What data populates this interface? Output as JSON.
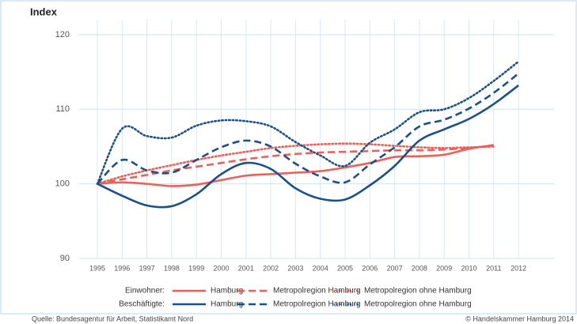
{
  "chart_data": {
    "type": "line",
    "y_label": "Index",
    "categories": [
      "1995",
      "1996",
      "1997",
      "1998",
      "1999",
      "2000",
      "2001",
      "2002",
      "2003",
      "2004",
      "2005",
      "2006",
      "2007",
      "2008",
      "2009",
      "2010",
      "2011",
      "2012"
    ],
    "ylim": [
      90,
      122
    ],
    "yticks": [
      90,
      100,
      110,
      120
    ],
    "grid": true,
    "groups": [
      {
        "name": "Einwohner:",
        "series": [
          {
            "name": "Hamburg",
            "color": "#ef5f57",
            "dash": "solid",
            "values": [
              100,
              100.2,
              100,
              99.7,
              99.9,
              100.5,
              101.1,
              101.3,
              101.5,
              101.7,
              102.2,
              102.8,
              103.6,
              103.7,
              103.9,
              104.7,
              105.2,
              null
            ]
          },
          {
            "name": "Metropolregion Hamburg",
            "color": "#ef5f57",
            "dash": "dashed",
            "values": [
              100,
              100.6,
              101.2,
              101.8,
              102.3,
              102.8,
              103.3,
              103.7,
              104,
              104.2,
              104.3,
              104.4,
              104.5,
              104.5,
              104.6,
              104.8,
              105.1,
              null
            ]
          },
          {
            "name": "Metropolregion ohne Hamburg",
            "color": "#ef5f57",
            "dash": "dotted",
            "values": [
              100,
              101,
              101.8,
              102.5,
              103.2,
              103.8,
              104.3,
              104.8,
              105.1,
              105.3,
              105.4,
              105.3,
              105.1,
              104.9,
              104.8,
              104.9,
              105,
              null
            ]
          }
        ]
      },
      {
        "name": "Beschäftigte:",
        "series": [
          {
            "name": "Hamburg",
            "color": "#1d4f8a",
            "dash": "solid",
            "values": [
              100,
              98.4,
              97.1,
              97,
              98.6,
              101.3,
              102.8,
              102,
              99.4,
              98,
              97.9,
              99.8,
              102.4,
              105.8,
              107.3,
              108.7,
              110.7,
              113.2
            ]
          },
          {
            "name": "Metropolregion Hamburg",
            "color": "#1d4f8a",
            "dash": "dashed",
            "values": [
              100,
              103.2,
              101.8,
              101.5,
              103.2,
              104.9,
              105.8,
              105,
              102.7,
              101,
              100.2,
              102.6,
              104.9,
              107.7,
              108.6,
              110.1,
              112.2,
              114.8
            ]
          },
          {
            "name": "Metropolregion ohne Hamburg",
            "color": "#1d4f8a",
            "dash": "dotted",
            "values": [
              100,
              107.4,
              106.4,
              106.2,
              107.8,
              108.5,
              108.4,
              107.7,
              105.6,
              103.8,
              102.4,
              105.5,
              107.3,
              109.6,
              110,
              111.5,
              113.8,
              116.4
            ]
          }
        ]
      }
    ],
    "source": "Quelle: Bundesagentur für Arbeit, Statistikamt Nord",
    "credit": "© Handelskammer Hamburg 2014"
  }
}
